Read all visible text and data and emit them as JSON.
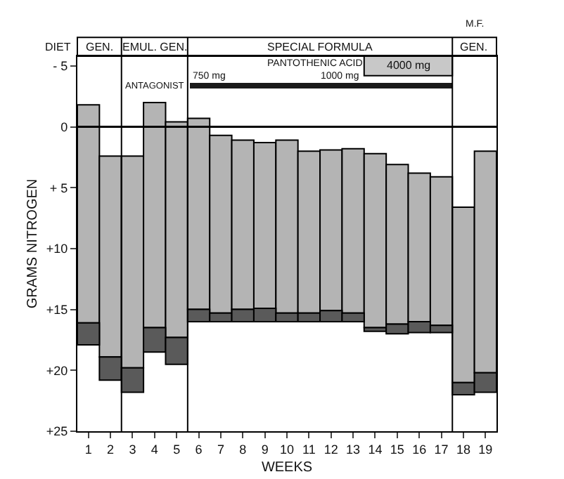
{
  "chart_data": {
    "type": "bar",
    "xlabel": "WEEKS",
    "ylabel": "GRAMS NITROGEN",
    "x": [
      1,
      2,
      3,
      4,
      5,
      6,
      7,
      8,
      9,
      10,
      11,
      12,
      13,
      14,
      15,
      16,
      17,
      18,
      19
    ],
    "series": [
      {
        "color": "#b4b4b4",
        "base": [
          -1.8,
          2.4,
          2.4,
          -2.0,
          -0.4,
          -0.7,
          0.7,
          1.1,
          1.3,
          1.1,
          2.0,
          1.9,
          1.8,
          2.2,
          3.1,
          3.8,
          4.1,
          6.6,
          2.0
        ],
        "values": [
          17.9,
          16.5,
          17.4,
          18.5,
          17.7,
          15.7,
          14.6,
          13.9,
          13.6,
          14.2,
          13.3,
          13.2,
          13.5,
          14.3,
          13.1,
          12.2,
          12.2,
          14.4,
          18.2
        ]
      },
      {
        "color": "#5a5a5a",
        "base": [
          16.1,
          18.9,
          19.8,
          16.5,
          17.3,
          15.0,
          15.3,
          15.0,
          14.9,
          15.3,
          15.3,
          15.1,
          15.3,
          16.5,
          16.2,
          16.0,
          16.3,
          21.0,
          20.2
        ],
        "values": [
          1.8,
          1.9,
          2.0,
          2.0,
          2.2,
          1.0,
          0.7,
          1.0,
          1.1,
          0.7,
          0.7,
          0.9,
          0.7,
          0.3,
          0.8,
          0.9,
          0.6,
          1.0,
          1.6
        ]
      }
    ],
    "xlim": [
      0.5,
      19.5
    ],
    "xticks": [
      1,
      2,
      3,
      4,
      5,
      6,
      7,
      8,
      9,
      10,
      11,
      12,
      13,
      14,
      15,
      16,
      17,
      18,
      19
    ],
    "ylim": [
      25,
      -5.8
    ],
    "yticks": [
      {
        "value": -5,
        "label": "- 5"
      },
      0,
      {
        "value": 5,
        "label": "+ 5"
      },
      {
        "value": 10,
        "label": "+10"
      },
      {
        "value": 15,
        "label": "+15"
      },
      {
        "value": 20,
        "label": "+20"
      },
      {
        "value": 25,
        "label": "+25"
      }
    ],
    "grid": false,
    "ref_lines": [
      {
        "axis": "y",
        "value": 0
      },
      {
        "axis": "x",
        "value": 2.5
      },
      {
        "axis": "x",
        "value": 5.5
      },
      {
        "axis": "x",
        "value": 17.5
      }
    ],
    "bands": [
      {
        "axis": "x",
        "from": 13.5,
        "to": 17.5,
        "label": "4000 mg",
        "color": "#c8c8c8"
      }
    ],
    "annotations": [
      "DIET",
      "GEN.",
      "EMUL. GEN.",
      "SPECIAL FORMULA",
      "GEN.",
      "M.F.",
      "ANTAGONIST",
      "PANTOTHENIC ACID",
      "750 mg",
      "1000 mg"
    ]
  }
}
